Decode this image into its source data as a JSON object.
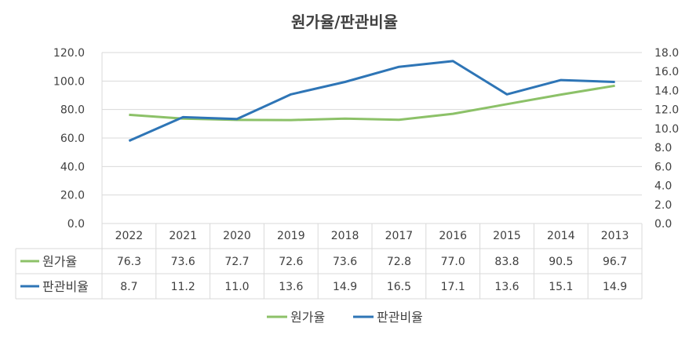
{
  "chart_data": {
    "type": "line",
    "title": "원가율/판관비율",
    "categories": [
      "2022",
      "2021",
      "2020",
      "2019",
      "2018",
      "2017",
      "2016",
      "2015",
      "2014",
      "2013"
    ],
    "series": [
      {
        "name": "원가율",
        "axis": "left",
        "color": "#8cc168",
        "values": [
          76.3,
          73.6,
          72.7,
          72.6,
          73.6,
          72.8,
          77.0,
          83.8,
          90.5,
          96.7
        ]
      },
      {
        "name": "판관비율",
        "axis": "right",
        "color": "#2e75b6",
        "values": [
          8.7,
          11.2,
          11.0,
          13.6,
          14.9,
          16.5,
          17.1,
          13.6,
          15.1,
          14.9
        ]
      }
    ],
    "y_left": {
      "min": 0,
      "max": 120,
      "ticks": [
        "0.0",
        "20.0",
        "40.0",
        "60.0",
        "80.0",
        "100.0",
        "120.0"
      ]
    },
    "y_right": {
      "min": 0,
      "max": 18,
      "ticks": [
        "0.0",
        "2.0",
        "4.0",
        "6.0",
        "8.0",
        "10.0",
        "12.0",
        "14.0",
        "16.0",
        "18.0"
      ]
    },
    "grid": true,
    "data_table": true,
    "legend": "bottom"
  }
}
